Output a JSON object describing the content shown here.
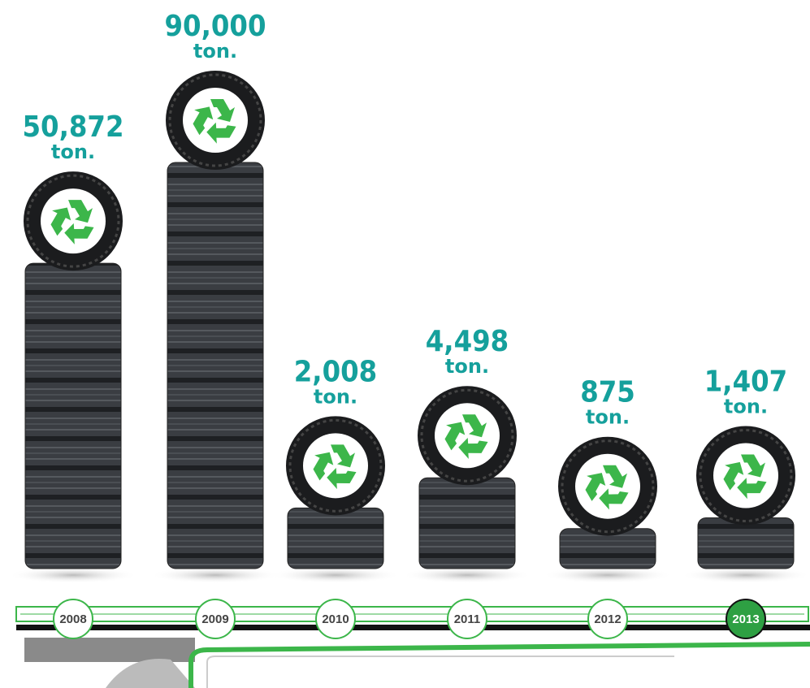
{
  "chart_data": {
    "type": "bar",
    "categories": [
      "2008",
      "2009",
      "2010",
      "2011",
      "2012",
      "2013"
    ],
    "values": [
      50872,
      90000,
      2008,
      4498,
      875,
      1407
    ],
    "value_labels": [
      "50,872",
      "90,000",
      "2,008",
      "4,498",
      "875",
      "1,407"
    ],
    "unit_label": "ton.",
    "color": "#3a3d42",
    "label_color": "#15a09c",
    "highlight_category": "2013"
  }
}
